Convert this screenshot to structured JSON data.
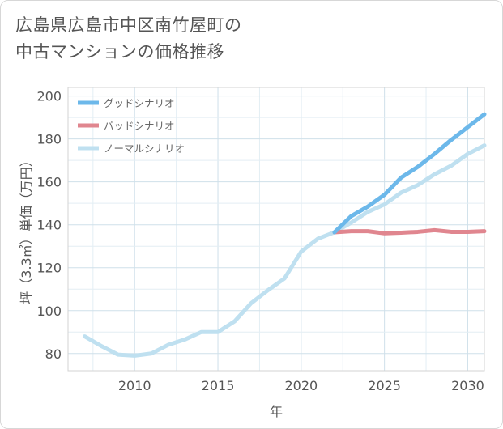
{
  "title_lines": [
    "広島県広島市中区南竹屋町の",
    "中古マンションの価格推移"
  ],
  "chart_data": {
    "type": "line",
    "title": "広島県広島市中区南竹屋町の中古マンションの価格推移",
    "xlabel": "年",
    "ylabel": "坪（3.3㎡）単価（万円）",
    "xlim": [
      2006,
      2031
    ],
    "ylim": [
      72,
      204
    ],
    "xticks": [
      2010,
      2015,
      2020,
      2025,
      2030
    ],
    "yticks": [
      80,
      100,
      120,
      140,
      160,
      180,
      200
    ],
    "grid": true,
    "legend_position": "top-left",
    "series": [
      {
        "name": "グッドシナリオ",
        "color": "#6cb8ea",
        "x": [
          2022,
          2023,
          2024,
          2025,
          2026,
          2027,
          2028,
          2029,
          2030,
          2031
        ],
        "y": [
          136.5,
          144,
          148.5,
          154,
          162,
          167,
          173,
          179.5,
          185.5,
          191.5
        ]
      },
      {
        "name": "バッドシナリオ",
        "color": "#e0868f",
        "x": [
          2022,
          2023,
          2024,
          2025,
          2026,
          2027,
          2028,
          2029,
          2030,
          2031
        ],
        "y": [
          136.5,
          137,
          137,
          136,
          136.3,
          136.7,
          137.5,
          136.7,
          136.7,
          137
        ]
      },
      {
        "name": "ノーマルシナリオ",
        "color": "#bfe0f0",
        "x": [
          2007,
          2008,
          2009,
          2010,
          2011,
          2012,
          2013,
          2014,
          2015,
          2016,
          2017,
          2018,
          2019,
          2020,
          2021,
          2022,
          2023,
          2024,
          2025,
          2026,
          2027,
          2028,
          2029,
          2030,
          2031
        ],
        "y": [
          88,
          83.5,
          79.5,
          79,
          80,
          84,
          86.5,
          90,
          90,
          95,
          103.5,
          109.5,
          115,
          127.5,
          133.5,
          136.5,
          141,
          146,
          149.5,
          155,
          158.5,
          163.5,
          167.5,
          173,
          177
        ]
      }
    ]
  }
}
